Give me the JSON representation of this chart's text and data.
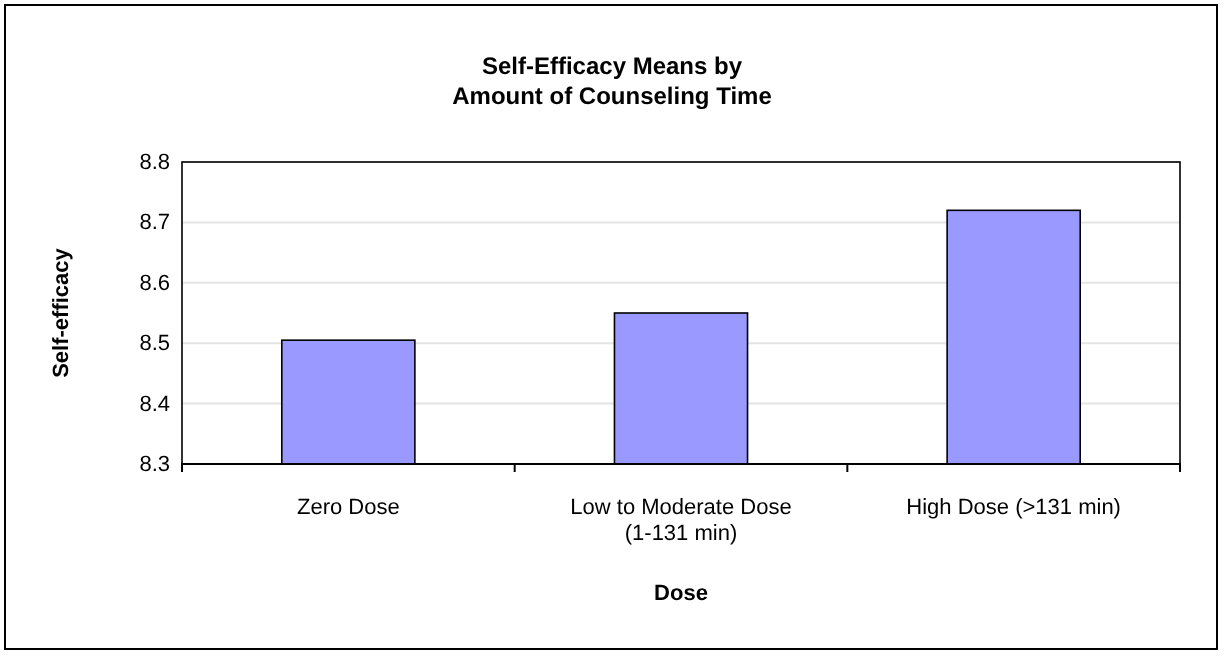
{
  "chart_data": {
    "type": "bar",
    "title": "Self-Efficacy Means by\nAmount of Counseling Time",
    "xlabel": "Dose",
    "ylabel": "Self-efficacy",
    "categories": [
      "Zero Dose",
      "Low to Moderate Dose\n(1-131 min)",
      "High Dose (>131 min)"
    ],
    "values": [
      8.505,
      8.55,
      8.72
    ],
    "color": "#9999ff",
    "ylim": [
      8.3,
      8.8
    ],
    "yticks": [
      {
        "value": 8.3,
        "label": "8.3"
      },
      {
        "value": 8.4,
        "label": "8.4"
      },
      {
        "value": 8.5,
        "label": "8.5"
      },
      {
        "value": 8.6,
        "label": "8.6"
      },
      {
        "value": 8.7,
        "label": "8.7"
      },
      {
        "value": 8.8,
        "label": "8.8"
      }
    ],
    "grid": "y"
  }
}
